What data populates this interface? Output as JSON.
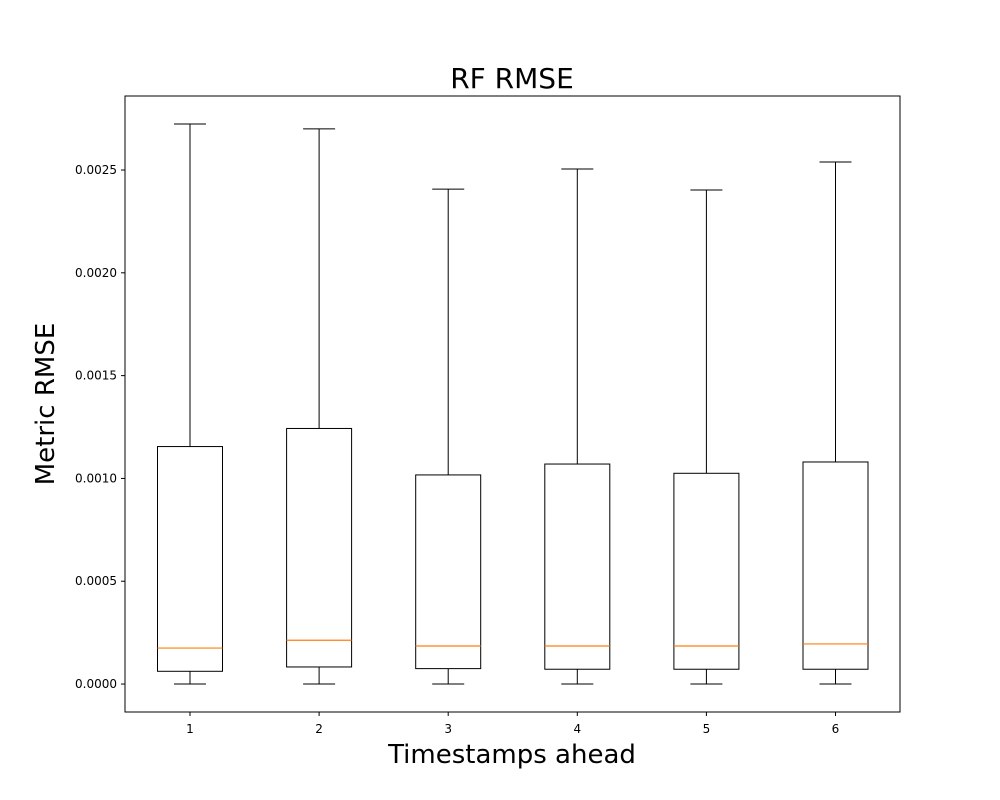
{
  "chart_data": {
    "type": "boxplot",
    "title": "RF RMSE",
    "xlabel": "Timestamps ahead",
    "ylabel": "Metric RMSE",
    "categories": [
      "1",
      "2",
      "3",
      "4",
      "5",
      "6"
    ],
    "boxes": [
      {
        "category": "1",
        "whisker_low": 0.0,
        "q1": 6.2e-05,
        "median": 0.000175,
        "q3": 0.001155,
        "whisker_high": 0.002724
      },
      {
        "category": "2",
        "whisker_low": 0.0,
        "q1": 8.3e-05,
        "median": 0.000213,
        "q3": 0.001243,
        "whisker_high": 0.0027
      },
      {
        "category": "3",
        "whisker_low": 0.0,
        "q1": 7.5e-05,
        "median": 0.000185,
        "q3": 0.001017,
        "whisker_high": 0.002407
      },
      {
        "category": "4",
        "whisker_low": 0.0,
        "q1": 7.2e-05,
        "median": 0.000185,
        "q3": 0.00107,
        "whisker_high": 0.002505
      },
      {
        "category": "5",
        "whisker_low": 0.0,
        "q1": 7.2e-05,
        "median": 0.000185,
        "q3": 0.001025,
        "whisker_high": 0.002403
      },
      {
        "category": "6",
        "whisker_low": 0.0,
        "q1": 7.2e-05,
        "median": 0.000195,
        "q3": 0.00108,
        "whisker_high": 0.002539
      }
    ],
    "yticks": [
      0.0,
      0.0005,
      0.001,
      0.0015,
      0.002,
      0.0025
    ],
    "ytick_labels": [
      "0.0000",
      "0.0005",
      "0.0010",
      "0.0015",
      "0.0020",
      "0.0025"
    ],
    "ylim": [
      -0.000136,
      0.00286
    ],
    "grid": false,
    "colors": {
      "box": "#000000",
      "median": "#ff7f0e"
    }
  }
}
